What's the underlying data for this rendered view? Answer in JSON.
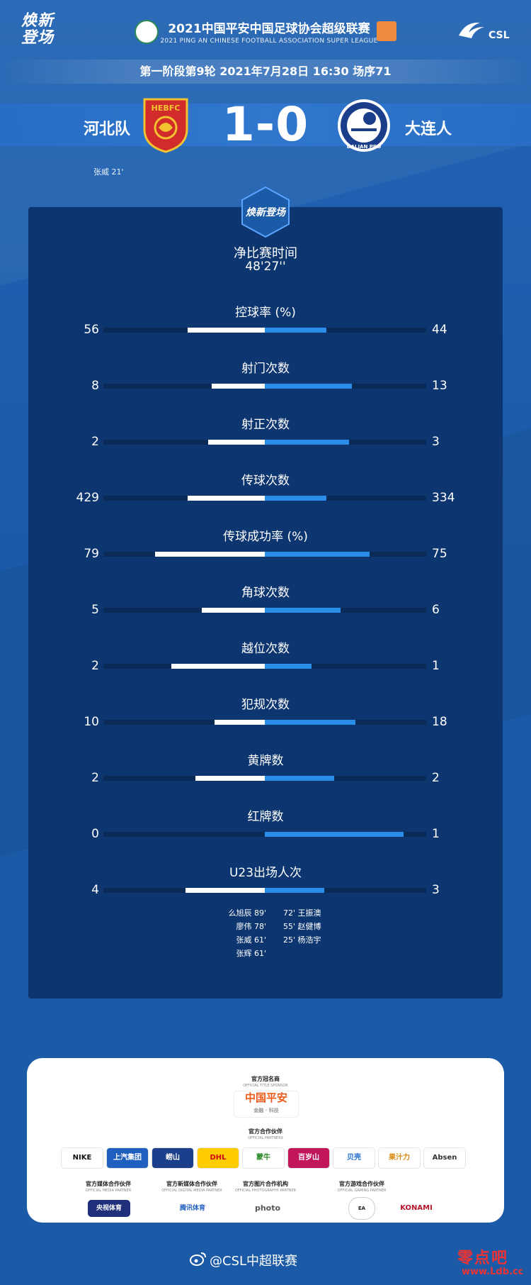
{
  "header": {
    "corner_brand": "焕新登场",
    "league_title": "2021中国平安中国足球协会超级联赛",
    "league_subtitle": "2021 PING AN CHINESE FOOTBALL ASSOCIATION SUPER LEAGUE",
    "csl_logo_text": "CSL",
    "round_info": "第一阶段第9轮  2021年7月28日 16:30 场序71"
  },
  "match": {
    "home_team": "河北队",
    "home_crest_text": "HEBFC",
    "away_team": "大连人",
    "away_crest_text": "DALIAN PRO",
    "score": "1-0",
    "home_scorer": "张威  21'"
  },
  "panel": {
    "logo_text": "焕新登场",
    "playing_time_label": "净比赛时间",
    "playing_time_value": "48'27''"
  },
  "colors": {
    "background": "#1b5aa6",
    "panel": "#0d3670",
    "home_bar": "#ffffff",
    "away_bar": "#2a8de8"
  },
  "stats": [
    {
      "label": "控球率 (%)",
      "home": "56",
      "away": "44",
      "home_frac": 0.24,
      "away_frac": 0.19
    },
    {
      "label": "射门次数",
      "home": "8",
      "away": "13",
      "home_frac": 0.165,
      "away_frac": 0.27
    },
    {
      "label": "射正次数",
      "home": "2",
      "away": "3",
      "home_frac": 0.175,
      "away_frac": 0.26
    },
    {
      "label": "传球次数",
      "home": "429",
      "away": "334",
      "home_frac": 0.24,
      "away_frac": 0.19
    },
    {
      "label": "传球成功率 (%)",
      "home": "79",
      "away": "75",
      "home_frac": 0.34,
      "away_frac": 0.325
    },
    {
      "label": "角球次数",
      "home": "5",
      "away": "6",
      "home_frac": 0.195,
      "away_frac": 0.235
    },
    {
      "label": "越位次数",
      "home": "2",
      "away": "1",
      "home_frac": 0.29,
      "away_frac": 0.145
    },
    {
      "label": "犯规次数",
      "home": "10",
      "away": "18",
      "home_frac": 0.155,
      "away_frac": 0.28
    },
    {
      "label": "黄牌数",
      "home": "2",
      "away": "2",
      "home_frac": 0.215,
      "away_frac": 0.215
    },
    {
      "label": "红牌数",
      "home": "0",
      "away": "1",
      "home_frac": 0.0,
      "away_frac": 0.43
    },
    {
      "label": "U23出场人次",
      "home": "4",
      "away": "3",
      "home_frac": 0.245,
      "away_frac": 0.185
    }
  ],
  "u23": {
    "home": [
      "么旭辰  89'",
      "廖伟  78'",
      "张威  61'",
      "张辉  61'"
    ],
    "away": [
      "72'  王振澳",
      "55'  赵健博",
      "25'  杨浩宇"
    ]
  },
  "sponsors": {
    "title_sponsor_head": "官方冠名商",
    "title_sponsor_sub": "OFFICIAL TITLE SPONSOR",
    "title_sponsor_logo": "中国平安",
    "title_sponsor_tagline": "金融 · 科技",
    "partners_head": "官方合作伙伴",
    "partners_sub": "OFFICIAL PARTNERS",
    "partners": [
      "NIKE",
      "上汽集团",
      "崂山",
      "DHL",
      "蒙牛",
      "百岁山",
      "贝壳",
      "果汁力",
      "Absen"
    ],
    "media_head": "官方媒体合作伙伴",
    "media_sub": "OFFICIAL MEDIA PARTNER",
    "media_logo": "央视体育",
    "digital_head": "官方新媒体合作伙伴",
    "digital_sub": "OFFICIAL DIGITAL MEDIA PARTNER",
    "digital_logo": "腾讯体育",
    "photo_head": "官方图片合作机构",
    "photo_sub": "OFFICIAL PHOTOGRAPHY PARTNER",
    "photo_logo": "photo",
    "gaming_head": "官方游戏合作伙伴",
    "gaming_sub": "OFFICIAL GAMING PARTNER",
    "gaming_logos": [
      "EA SPORTS",
      "KONAMI"
    ]
  },
  "footer": {
    "weibo": "@CSL中超联赛",
    "watermark": "零点吧",
    "watermark_url": "www.Ldb.cc"
  }
}
